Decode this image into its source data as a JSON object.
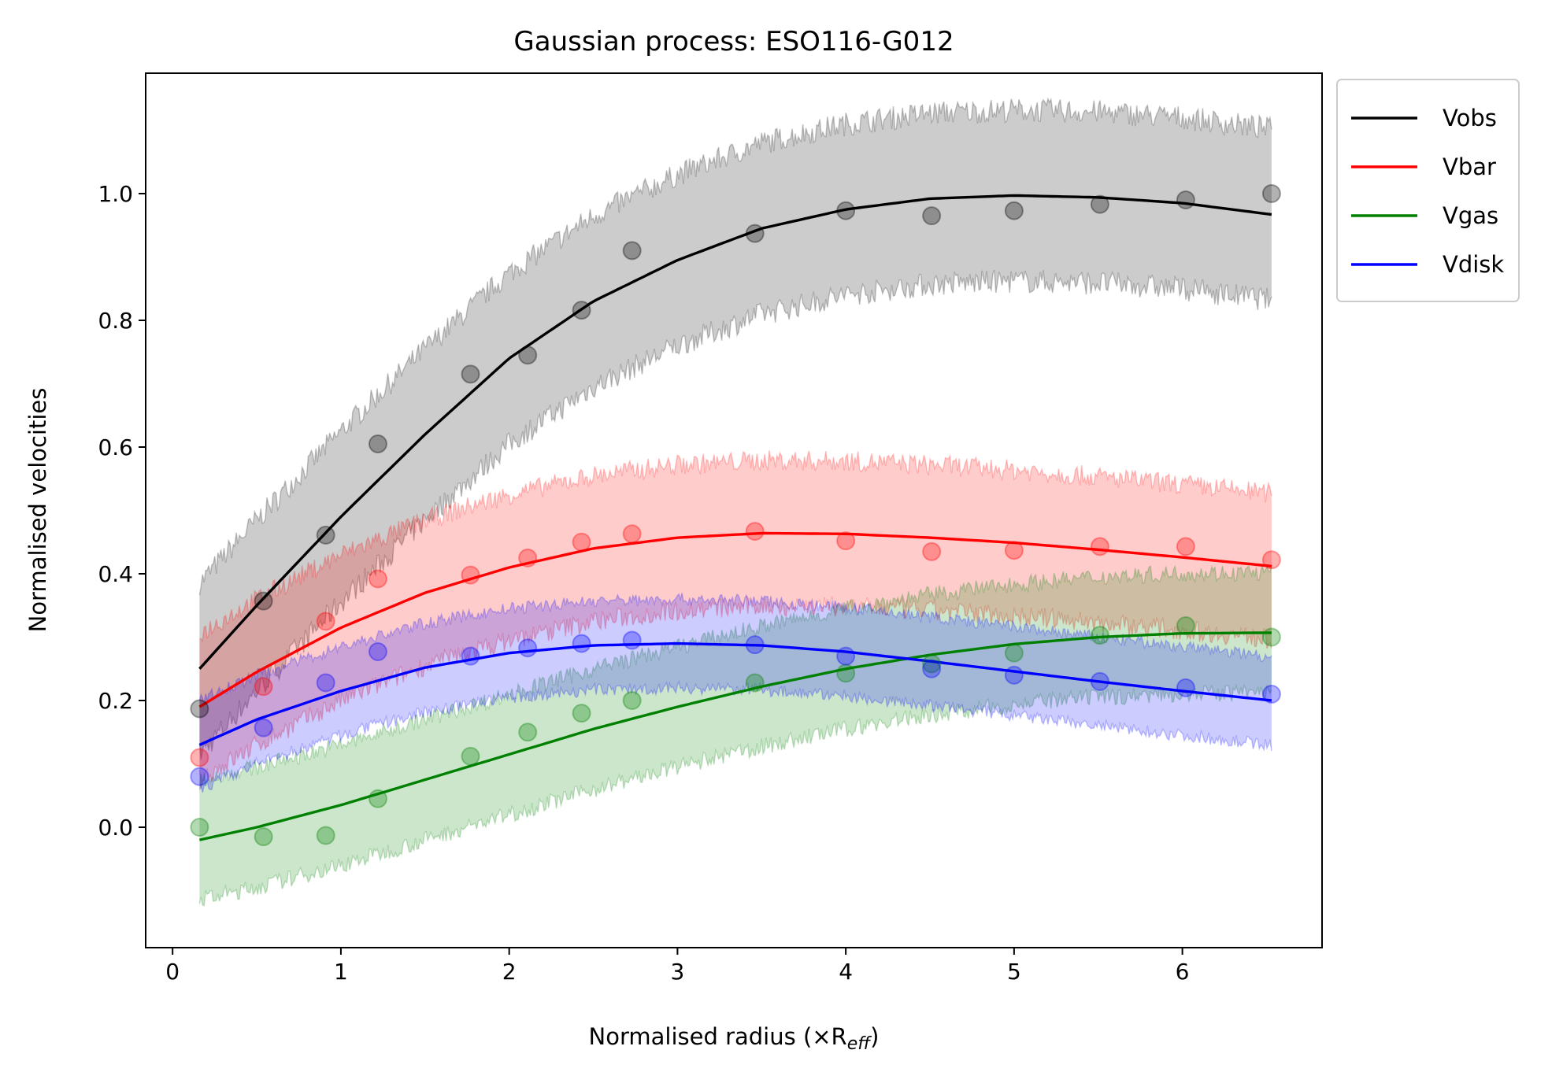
{
  "chart_data": {
    "type": "line",
    "title": "Gaussian process: ESO116-G012",
    "xlabel": "Normalised radius (×R",
    "xlabel_sub": "eff",
    "xlabel_end": ")",
    "ylabel": "Normalised velocities",
    "xlim": [
      -0.16,
      6.83
    ],
    "ylim": [
      -0.19,
      1.19
    ],
    "xticks": [
      0,
      1,
      2,
      3,
      4,
      5,
      6
    ],
    "xtick_labels": [
      "0",
      "1",
      "2",
      "3",
      "4",
      "5",
      "6"
    ],
    "yticks": [
      0.0,
      0.2,
      0.4,
      0.6,
      0.8,
      1.0
    ],
    "ytick_labels": [
      "0.0",
      "0.2",
      "0.4",
      "0.6",
      "0.8",
      "1.0"
    ],
    "grid": false,
    "legend_position": "outside top-right",
    "x_points": [
      0.16,
      0.54,
      0.91,
      1.22,
      1.77,
      2.11,
      2.43,
      2.73,
      3.46,
      4.0,
      4.51,
      5.0,
      5.51,
      6.02,
      6.53
    ],
    "series": [
      {
        "name": "Vobs",
        "color": "#000000",
        "points": [
          0.187,
          0.357,
          0.461,
          0.605,
          0.715,
          0.745,
          0.816,
          0.91,
          0.937,
          0.973,
          0.965,
          0.973,
          0.983,
          0.99,
          1.0
        ],
        "fit_x": [
          0.16,
          0.5,
          1.0,
          1.5,
          2.0,
          2.5,
          3.0,
          3.5,
          4.0,
          4.5,
          5.0,
          5.5,
          6.0,
          6.53
        ],
        "fit_y": [
          0.25,
          0.35,
          0.49,
          0.62,
          0.74,
          0.83,
          0.895,
          0.945,
          0.975,
          0.992,
          0.997,
          0.994,
          0.985,
          0.967
        ],
        "band": 0.135
      },
      {
        "name": "Vbar",
        "color": "#ff0000",
        "points": [
          0.11,
          0.222,
          0.325,
          0.392,
          0.398,
          0.425,
          0.45,
          0.463,
          0.467,
          0.452,
          0.435,
          0.437,
          0.443,
          0.443,
          0.422
        ],
        "fit_x": [
          0.16,
          0.5,
          1.0,
          1.5,
          2.0,
          2.5,
          3.0,
          3.5,
          4.0,
          4.5,
          5.0,
          5.5,
          6.0,
          6.53
        ],
        "fit_y": [
          0.19,
          0.245,
          0.315,
          0.37,
          0.41,
          0.44,
          0.457,
          0.464,
          0.463,
          0.457,
          0.449,
          0.438,
          0.426,
          0.412
        ],
        "band": 0.115
      },
      {
        "name": "Vgas",
        "color": "#008000",
        "points": [
          0.0,
          -0.015,
          -0.013,
          0.045,
          0.112,
          0.15,
          0.18,
          0.2,
          0.228,
          0.243,
          0.258,
          0.275,
          0.303,
          0.318,
          0.3
        ],
        "fit_x": [
          0.16,
          0.5,
          1.0,
          1.5,
          2.0,
          2.5,
          3.0,
          3.5,
          4.0,
          4.5,
          5.0,
          5.5,
          6.0,
          6.53
        ],
        "fit_y": [
          -0.02,
          0.0,
          0.035,
          0.075,
          0.115,
          0.155,
          0.19,
          0.222,
          0.25,
          0.272,
          0.289,
          0.3,
          0.306,
          0.307
        ],
        "band": 0.095
      },
      {
        "name": "Vdisk",
        "color": "#0000ff",
        "points": [
          0.08,
          0.157,
          0.228,
          0.277,
          0.27,
          0.283,
          0.29,
          0.295,
          0.288,
          0.27,
          0.25,
          0.24,
          0.23,
          0.22,
          0.21
        ],
        "fit_x": [
          0.16,
          0.5,
          1.0,
          1.5,
          2.0,
          2.5,
          3.0,
          3.5,
          4.0,
          4.5,
          5.0,
          5.5,
          6.0,
          6.53
        ],
        "fit_y": [
          0.13,
          0.17,
          0.215,
          0.252,
          0.275,
          0.287,
          0.29,
          0.287,
          0.277,
          0.262,
          0.246,
          0.23,
          0.215,
          0.2
        ],
        "band": 0.07
      }
    ]
  }
}
